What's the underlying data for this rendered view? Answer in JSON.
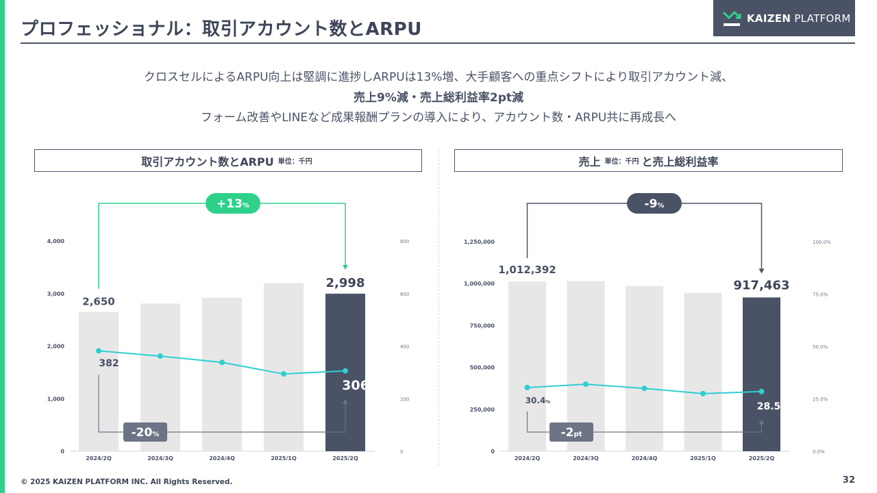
{
  "header": {
    "title": "プロフェッショナル：取引アカウント数とARPU",
    "logo_brand": "KAIZEN",
    "logo_suffix": "PLATFORM"
  },
  "summary": {
    "line1": "クロスセルによるARPU向上は堅調に進捗しARPUは13%増、大手顧客への重点シフトにより取引アカウント減、",
    "line2": "売上9%減・売上総利益率2pt減",
    "line3": "フォーム改善やLINEなど成果報酬プランの導入により、アカウント数・ARPU共に再成長へ"
  },
  "colors": {
    "accent": "#2fd08a",
    "navy": "#4a5266",
    "bar_gray": "#e7e7e8",
    "line_teal": "#2ecfd0",
    "badge_gray": "#6d7486"
  },
  "chart_data": [
    {
      "type": "bar",
      "title": "取引アカウント数とARPU",
      "title_unit": "単位：千円",
      "categories": [
        "2024/2Q",
        "2024/3Q",
        "2024/4Q",
        "2025/1Q",
        "2025/2Q"
      ],
      "series": [
        {
          "values": [
            2650,
            2810,
            2920,
            3200,
            2998
          ],
          "axis": "left",
          "type": "bar"
        },
        {
          "values": [
            382,
            362,
            338,
            294,
            306
          ],
          "axis": "right",
          "type": "line"
        }
      ],
      "left_axis": {
        "min": 0,
        "max": 4000,
        "ticks": [
          "0",
          "1,000",
          "2,000",
          "3,000",
          "4,000"
        ]
      },
      "right_axis": {
        "min": 0,
        "max": 800,
        "ticks": [
          "0",
          "200",
          "400",
          "600",
          "800"
        ]
      },
      "labels": {
        "first_bar": "2,650",
        "last_bar": "2,998",
        "first_line": "382",
        "last_line": "306"
      },
      "badges": {
        "bar_change": "+13",
        "bar_change_unit": "%",
        "line_change": "-20",
        "line_change_unit": "%"
      }
    },
    {
      "type": "bar",
      "title_a": "売上",
      "title_unit": "単位：千円",
      "title_b": "と売上総利益率",
      "categories": [
        "2024/2Q",
        "2024/3Q",
        "2024/4Q",
        "2025/1Q",
        "2025/2Q"
      ],
      "series": [
        {
          "values": [
            1012392,
            1015000,
            985000,
            945000,
            917463
          ],
          "axis": "left",
          "type": "bar"
        },
        {
          "values": [
            30.4,
            32.0,
            30.0,
            27.5,
            28.5
          ],
          "axis": "right",
          "type": "line"
        }
      ],
      "left_axis": {
        "min": 0,
        "max": 1250000,
        "ticks": [
          "0",
          "250,000",
          "500,000",
          "750,000",
          "1,000,000",
          "1,250,000"
        ]
      },
      "right_axis": {
        "min": 0,
        "max": 100,
        "ticks": [
          "0.0%",
          "25.0%",
          "50.0%",
          "75.0%",
          "100.0%"
        ]
      },
      "labels": {
        "first_bar": "1,012,392",
        "last_bar": "917,463",
        "first_line": "30.4",
        "first_line_unit": "%",
        "last_line": "28.5",
        "last_line_unit": "%"
      },
      "badges": {
        "bar_change": "-9",
        "bar_change_unit": "%",
        "line_change": "-2",
        "line_change_unit": "pt"
      }
    }
  ],
  "footer": {
    "copyright": "© 2025 KAIZEN PLATFORM INC. All Rights Reserved.",
    "page_number": "32"
  }
}
